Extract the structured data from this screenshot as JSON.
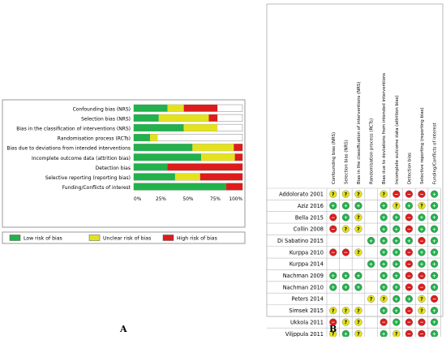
{
  "captions": {
    "a": "A",
    "b": "B"
  },
  "colors": {
    "low": "#22b14c",
    "unclear": "#e4e21e",
    "high": "#dd1c1c",
    "grid": "#aaaaaa"
  },
  "chart_data": [
    {
      "type": "bar",
      "orientation": "horizontal",
      "stacked": true,
      "xlim": [
        0,
        100
      ],
      "xticks": [
        "0%",
        "25%",
        "50%",
        "75%",
        "100%"
      ],
      "categories": [
        "Confounding bias (NRS)",
        "Selection bias (NRS)",
        "Bias in the classification of interventions (NRS)",
        "Randomisation process (RCTs)",
        "Bias due to deviations from intended interventions",
        "Incomplete outcome data (attrition bias)",
        "Detection bias",
        "Selective reporting (reporting bias)",
        "Funding/Conflicts of interest"
      ],
      "series": [
        {
          "name": "Low risk of bias",
          "key": "low",
          "values": [
            31,
            23,
            46,
            15,
            54,
            62,
            31,
            38,
            85
          ]
        },
        {
          "name": "Unclear risk of bias",
          "key": "unclear",
          "values": [
            15,
            46,
            31,
            7,
            38,
            31,
            0,
            23,
            0
          ]
        },
        {
          "name": "High risk of bias",
          "key": "high",
          "values": [
            31,
            8,
            0,
            0,
            8,
            7,
            69,
            39,
            15
          ]
        }
      ],
      "legend_position": "bottom"
    },
    {
      "type": "table",
      "domains": [
        "Confounding bias (NRS)",
        "Selection bias (NRS)",
        "Bias in the classification of interventions (NRS)",
        "Randomisation process (RCTs)",
        "Bias due to deviations from intended interventions",
        "Incomplete outcome data (attrition bias)",
        "Detection bias",
        "Selective reporting (reporting bias)",
        "Funding/Conflicts of interest"
      ],
      "symbols": {
        "low": "+",
        "unclear": "?",
        "high": "−"
      },
      "studies": [
        {
          "name": "Addolorato 2001",
          "ratings": [
            "?",
            "?",
            "?",
            "",
            "?",
            "-",
            "-",
            "-",
            "+"
          ]
        },
        {
          "name": "Aziz 2016",
          "ratings": [
            "+",
            "+",
            "+",
            "",
            "+",
            "?",
            "+",
            "?",
            "+"
          ]
        },
        {
          "name": "Bella 2015",
          "ratings": [
            "-",
            "+",
            "?",
            "",
            "+",
            "+",
            "-",
            "+",
            "+"
          ]
        },
        {
          "name": "Collin 2008",
          "ratings": [
            "-",
            "?",
            "?",
            "",
            "+",
            "+",
            "-",
            "+",
            "+"
          ]
        },
        {
          "name": "Di Sabatino 2015",
          "ratings": [
            "",
            "",
            "",
            "+",
            "+",
            "+",
            "+",
            "-",
            "+"
          ]
        },
        {
          "name": "Kurppa 2010",
          "ratings": [
            "-",
            "-",
            "?",
            "",
            "+",
            "+",
            "-",
            "+",
            "+"
          ]
        },
        {
          "name": "Kurppa 2014",
          "ratings": [
            "",
            "",
            "",
            "+",
            "+",
            "+",
            "-",
            "+",
            "+"
          ]
        },
        {
          "name": "Nachman 2009",
          "ratings": [
            "+",
            "+",
            "+",
            "",
            "+",
            "+",
            "-",
            "-",
            "+"
          ]
        },
        {
          "name": "Nachman 2010",
          "ratings": [
            "+",
            "+",
            "+",
            "",
            "+",
            "+",
            "-",
            "-",
            "+"
          ]
        },
        {
          "name": "Peters 2014",
          "ratings": [
            "",
            "",
            "",
            "?",
            "?",
            "+",
            "+",
            "?",
            "-"
          ]
        },
        {
          "name": "Simsek 2015",
          "ratings": [
            "?",
            "?",
            "?",
            "",
            "+",
            "+",
            "-",
            "?",
            "+"
          ]
        },
        {
          "name": "Ukkola 2011",
          "ratings": [
            "-",
            "?",
            "?",
            "",
            "-",
            "+",
            "-",
            "-",
            "+"
          ]
        },
        {
          "name": "Viljppula 2011",
          "ratings": [
            "?",
            "+",
            "?",
            "",
            "+",
            "?",
            "-",
            "-",
            "+"
          ]
        }
      ]
    }
  ]
}
